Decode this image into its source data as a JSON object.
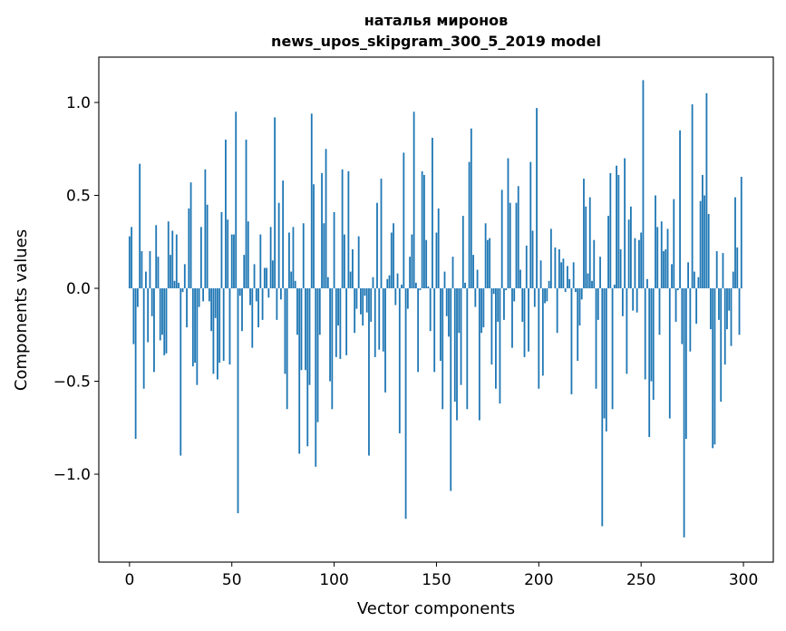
{
  "chart_data": {
    "type": "bar",
    "title": [
      "наталья миронов",
      "news_upos_skipgram_300_5_2019 model"
    ],
    "xlabel": "Vector components",
    "ylabel": "Components values",
    "xlim": [
      -15,
      314.6
    ],
    "ylim": [
      -1.473,
      1.244
    ],
    "xticks": [
      0,
      50,
      100,
      150,
      200,
      250,
      300
    ],
    "xtick_labels": [
      "0",
      "50",
      "100",
      "150",
      "200",
      "250",
      "300"
    ],
    "yticks": [
      -1.0,
      -0.5,
      0.0,
      0.5,
      1.0
    ],
    "ytick_labels": [
      "−1.0",
      "−0.5",
      "0.0",
      "0.5",
      "1.0"
    ],
    "grid": false,
    "bar_color": "#1f77b4",
    "values": [
      0.28,
      0.33,
      -0.3,
      -0.81,
      -0.1,
      0.67,
      0.2,
      -0.54,
      0.09,
      -0.29,
      0.2,
      -0.15,
      -0.45,
      0.34,
      0.17,
      -0.28,
      -0.25,
      -0.36,
      -0.35,
      0.36,
      0.18,
      0.31,
      0.04,
      0.29,
      0.03,
      -0.9,
      -0.02,
      0.13,
      -0.21,
      0.43,
      0.57,
      -0.42,
      -0.4,
      -0.52,
      -0.1,
      0.33,
      -0.07,
      0.64,
      0.45,
      -0.07,
      -0.23,
      -0.46,
      -0.16,
      -0.49,
      -0.4,
      0.41,
      -0.39,
      0.8,
      0.37,
      -0.41,
      0.29,
      0.29,
      0.95,
      -1.21,
      -0.04,
      -0.23,
      0.18,
      0.8,
      0.36,
      -0.09,
      -0.32,
      0.13,
      -0.07,
      -0.21,
      0.29,
      -0.17,
      0.11,
      0.11,
      -0.05,
      0.33,
      0.15,
      0.92,
      -0.17,
      0.46,
      -0.06,
      0.58,
      -0.46,
      -0.65,
      0.3,
      0.09,
      0.33,
      0.04,
      -0.25,
      -0.89,
      -0.44,
      0.35,
      -0.44,
      -0.85,
      -0.52,
      0.94,
      0.56,
      -0.96,
      -0.72,
      -0.25,
      0.62,
      0.35,
      0.75,
      0.06,
      -0.5,
      -0.65,
      0.41,
      -0.37,
      -0.2,
      -0.38,
      0.64,
      0.29,
      -0.36,
      0.63,
      0.09,
      0.21,
      -0.24,
      -0.11,
      0.28,
      -0.14,
      -0.2,
      -0.04,
      -0.13,
      -0.9,
      -0.18,
      0.06,
      -0.37,
      0.46,
      -0.33,
      0.59,
      -0.34,
      -0.56,
      0.05,
      0.07,
      0.3,
      0.35,
      -0.09,
      0.08,
      -0.78,
      0.02,
      0.73,
      -1.24,
      -0.11,
      0.17,
      0.29,
      0.95,
      0.03,
      -0.45,
      -0.01,
      0.63,
      0.61,
      0.26,
      0.01,
      -0.23,
      0.81,
      -0.45,
      0.3,
      0.43,
      -0.39,
      -0.65,
      0.09,
      -0.15,
      -0.26,
      -1.09,
      0.17,
      -0.61,
      -0.71,
      -0.24,
      -0.52,
      0.39,
      0.03,
      -0.65,
      0.68,
      0.86,
      0.18,
      -0.1,
      0.1,
      -0.71,
      -0.24,
      -0.21,
      0.35,
      0.26,
      0.27,
      -0.41,
      -0.03,
      -0.54,
      -0.18,
      -0.62,
      0.53,
      -0.17,
      -0.01,
      0.7,
      0.46,
      -0.32,
      -0.07,
      0.46,
      0.55,
      0.1,
      -0.18,
      -0.37,
      0.23,
      -0.34,
      0.68,
      0.31,
      -0.1,
      0.97,
      -0.54,
      0.15,
      -0.47,
      -0.08,
      -0.07,
      0.04,
      0.32,
      0.0,
      0.22,
      -0.24,
      0.21,
      0.14,
      0.16,
      -0.02,
      0.12,
      0.05,
      -0.57,
      0.14,
      -0.02,
      -0.39,
      -0.2,
      -0.06,
      0.59,
      0.44,
      0.08,
      0.49,
      0.04,
      0.26,
      -0.54,
      -0.17,
      0.17,
      -1.28,
      -0.7,
      -0.77,
      0.39,
      0.62,
      -0.65,
      0.02,
      0.66,
      0.61,
      0.21,
      -0.15,
      0.7,
      -0.46,
      0.37,
      0.44,
      -0.12,
      0.27,
      -0.13,
      0.26,
      0.3,
      1.12,
      -0.49,
      0.05,
      -0.8,
      -0.5,
      -0.6,
      0.5,
      0.33,
      -0.25,
      0.36,
      0.2,
      0.21,
      0.32,
      -0.7,
      0.13,
      0.48,
      -0.18,
      -0.01,
      0.85,
      -0.3,
      -1.34,
      -0.81,
      0.14,
      -0.34,
      0.99,
      0.09,
      -0.19,
      0.06,
      0.47,
      0.61,
      0.5,
      1.05,
      0.4,
      -0.22,
      -0.86,
      -0.84,
      0.2,
      -0.17,
      -0.61,
      0.19,
      -0.41,
      -0.22,
      -0.12,
      -0.31,
      0.09,
      0.49,
      0.22,
      -0.25,
      0.6
    ]
  }
}
